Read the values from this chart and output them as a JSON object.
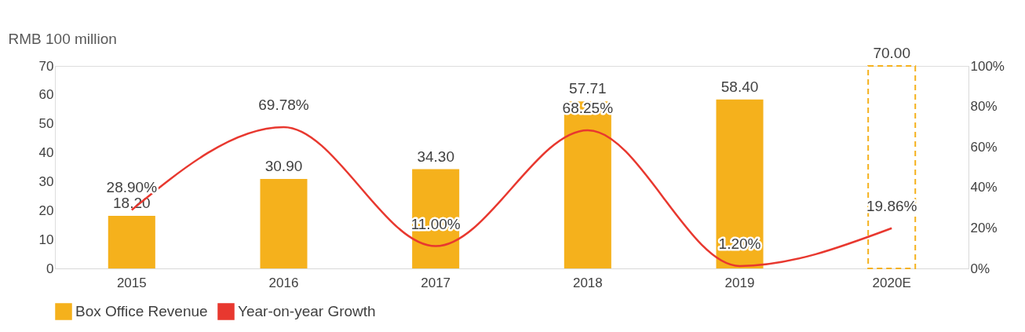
{
  "chart_data": {
    "type": "bar",
    "ylabel": "RMB 100 million",
    "categories": [
      "2015",
      "2016",
      "2017",
      "2018",
      "2019",
      "2020E"
    ],
    "series": [
      {
        "name": "Box Office Revenue",
        "color": "#f5b11c",
        "values": [
          18.2,
          30.9,
          34.3,
          57.71,
          58.4,
          null
        ],
        "value_labels": [
          "18.20",
          "30.90",
          "34.30",
          "57.71",
          "58.40",
          null
        ]
      },
      {
        "color": "#f5b11c",
        "line_style": "dashed",
        "values": [
          null,
          null,
          null,
          null,
          null,
          70.0
        ],
        "value_labels": [
          null,
          null,
          null,
          null,
          null,
          "70.00"
        ]
      },
      {
        "name": "Year-on-year Growth",
        "type": "line",
        "axis": "y2",
        "color": "#e8382f",
        "values": [
          28.9,
          69.78,
          11.0,
          68.25,
          1.2,
          19.86
        ],
        "value_labels": [
          "28.90%",
          "69.78%",
          "11.00%",
          "68.25%",
          "1.20%",
          "19.86%"
        ]
      }
    ],
    "ylim": [
      0,
      70
    ],
    "yticks": [
      0,
      10,
      20,
      30,
      40,
      50,
      60,
      70
    ],
    "y2lim": [
      0,
      100
    ],
    "y2ticks": [
      {
        "value": 0,
        "label": "0%"
      },
      {
        "value": 20,
        "label": "20%"
      },
      {
        "value": 40,
        "label": "40%"
      },
      {
        "value": 60,
        "label": "60%"
      },
      {
        "value": 80,
        "label": "80%"
      },
      {
        "value": 100,
        "label": "100%"
      }
    ],
    "legend": "bottom",
    "grid": false
  }
}
